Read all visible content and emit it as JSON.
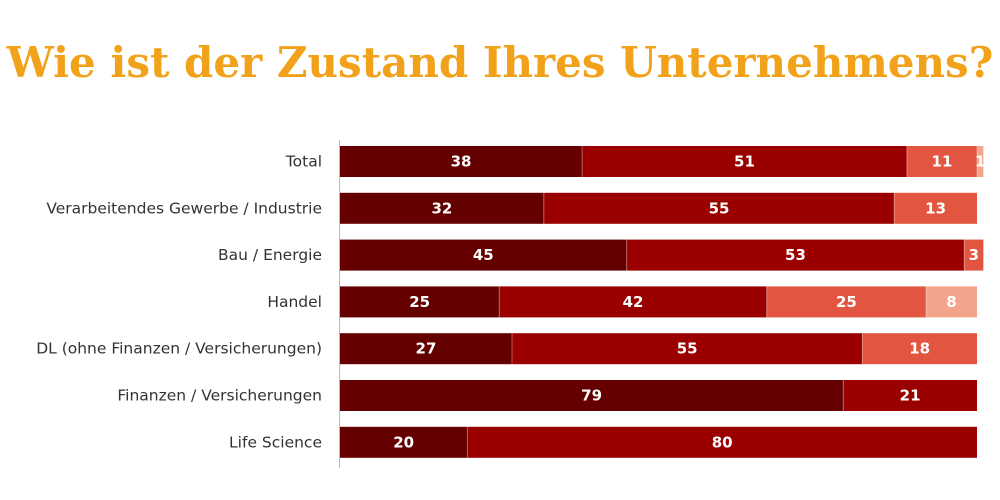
{
  "chart_data": {
    "type": "bar",
    "orientation": "horizontal",
    "stacked": true,
    "title": "Wie ist der Zustand Ihres Unternehmens?",
    "categories": [
      "Total",
      "Verarbeitendes Gewerbe / Industrie",
      "Bau / Energie",
      "Handel",
      "DL (ohne Finanzen / Versicherungen)",
      "Finanzen / Versicherungen",
      "Life Science"
    ],
    "series": [
      {
        "color": "#650000",
        "values": [
          38,
          32,
          45,
          25,
          27,
          79,
          20
        ]
      },
      {
        "color": "#9B0000",
        "values": [
          51,
          55,
          53,
          42,
          55,
          21,
          80
        ]
      },
      {
        "color": "#E25641",
        "values": [
          11,
          13,
          3,
          25,
          18,
          0,
          0
        ]
      },
      {
        "color": "#F2A48C",
        "values": [
          1,
          0,
          0,
          8,
          0,
          0,
          0
        ]
      }
    ],
    "xlim": [
      0,
      100
    ],
    "legend": "none",
    "grid": false
  }
}
